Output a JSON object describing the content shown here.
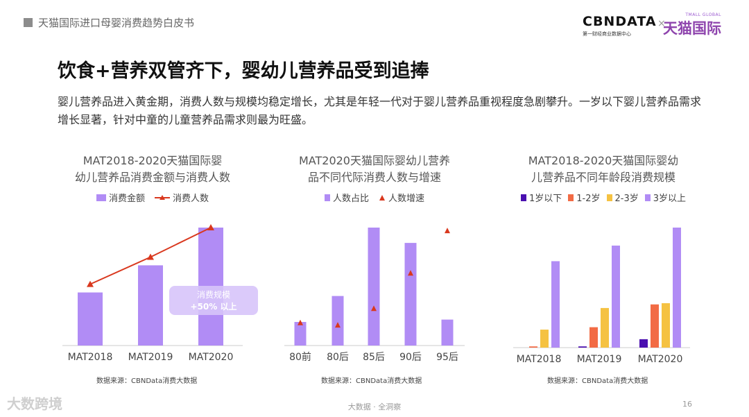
{
  "header": {
    "report_title": "天猫国际进口母婴消费趋势白皮书"
  },
  "logo": {
    "cbn_text": "CBNDATA",
    "cbn_sub": "第一财经商业数据中心",
    "cross": "×",
    "tmall_en": "TMALL GLOBAL",
    "tmall_cn": "天猫国际"
  },
  "slide": {
    "title": "饮食+营养双管齐下，婴幼儿营养品受到追捧",
    "description": "婴儿营养品进入黄金期，消费人数与规模均稳定增长，尤其是年轻一代对于婴儿营养品重视程度急剧攀升。一岁以下婴儿营养品需求增长显著，针对中童的儿童营养品需求则最为旺盛。"
  },
  "footer": {
    "center": "大数据 · 全洞察",
    "page": "16",
    "watermark": "大数跨境"
  },
  "colors": {
    "purple": "#b18cf5",
    "red": "#d9381e",
    "darkpurple": "#4a0fb0",
    "orange": "#f26b45",
    "yellow": "#f5c242"
  },
  "chart_data": [
    {
      "type": "bar",
      "title_lines": [
        "MAT2018-2020天猫国际婴",
        "幼儿营养品消费金额与消费人数"
      ],
      "categories": [
        "MAT2018",
        "MAT2019",
        "MAT2020"
      ],
      "series": [
        {
          "name": "消费金额",
          "kind": "bar",
          "values": [
            0.45,
            0.68,
            1.0
          ]
        },
        {
          "name": "消费人数",
          "kind": "line",
          "values": [
            0.52,
            0.75,
            1.0
          ]
        }
      ],
      "annotation": {
        "line1": "消费规模",
        "line2": "+50% 以上"
      },
      "source": "数据来源：CBNData消费大数据"
    },
    {
      "type": "bar",
      "title_lines": [
        "MAT2020天猫国际婴幼儿营养",
        "品不同代际消费人数与增速"
      ],
      "categories": [
        "80前",
        "80后",
        "85后",
        "90后",
        "95后"
      ],
      "series": [
        {
          "name": "人数占比",
          "kind": "bar",
          "values": [
            0.2,
            0.42,
            1.0,
            0.87,
            0.22
          ]
        },
        {
          "name": "人数增速",
          "kind": "marker",
          "values": [
            0.19,
            0.17,
            0.31,
            0.61,
            0.97
          ]
        }
      ],
      "source": "数据来源：CBNData消费大数据"
    },
    {
      "type": "bar",
      "title_lines": [
        "MAT2018-2020天猫国际婴幼",
        "儿营养品不同年龄段消费规模"
      ],
      "categories": [
        "MAT2018",
        "MAT2019",
        "MAT2020"
      ],
      "series": [
        {
          "name": "1岁以下",
          "values": [
            0.0,
            0.01,
            0.07
          ]
        },
        {
          "name": "1-2岁",
          "values": [
            0.01,
            0.17,
            0.36
          ]
        },
        {
          "name": "2-3岁",
          "values": [
            0.15,
            0.33,
            0.37
          ]
        },
        {
          "name": "3岁以上",
          "values": [
            0.72,
            0.85,
            1.0
          ]
        }
      ],
      "source": "数据来源：CBNData消费大数据"
    }
  ]
}
